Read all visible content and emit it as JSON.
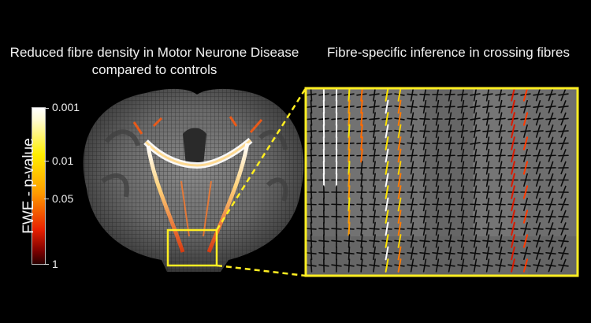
{
  "titles": {
    "left": "Reduced fibre density in Motor Neurone Disease compared to controls",
    "right": "Fibre-specific inference in crossing fibres"
  },
  "colorbar": {
    "label": "FWE - p-value",
    "ticks": [
      "0.001",
      "0.01",
      "0.05",
      "1"
    ],
    "colors": {
      "high": "#ffffff",
      "mid": "#ffee00",
      "low": "#2a0000"
    }
  },
  "highlight_color": "#ffee22"
}
